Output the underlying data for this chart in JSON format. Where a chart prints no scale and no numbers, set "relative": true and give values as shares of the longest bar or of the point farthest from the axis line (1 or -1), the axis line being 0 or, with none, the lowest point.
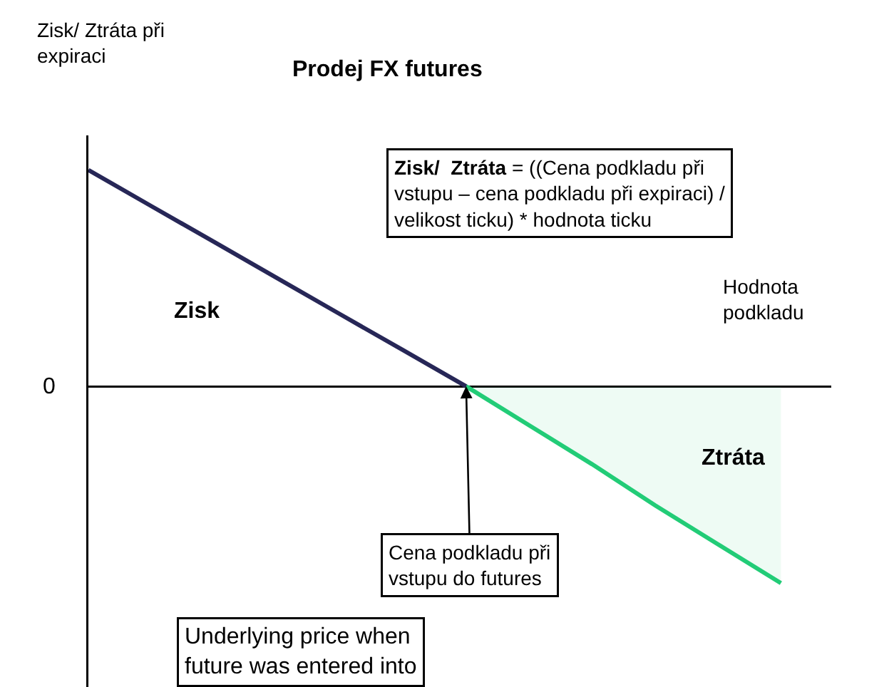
{
  "chart_data": {
    "type": "line",
    "title": "Prodej FX futures",
    "xlabel": "Hodnota podkladu",
    "relative": true,
    "marker": "none",
    "categories": [
      null,
      null,
      null,
      null,
      null,
      null,
      null,
      null,
      null,
      null,
      null,
      null
    ],
    "series": [
      {
        "color": "#272757",
        "values": [
          1,
          0.833,
          0.667,
          0.5,
          0.333,
          0.167,
          0,
          null,
          null,
          null,
          null,
          null
        ]
      },
      {
        "type": "area",
        "color": "#22cc77",
        "values": [
          null,
          null,
          null,
          null,
          null,
          null,
          0,
          -0.18,
          -0.36,
          -0.55,
          -0.73,
          -0.91
        ]
      }
    ],
    "annotations": [
      "Zisk/ Ztráta při expiraci",
      "0",
      "Zisk",
      "Ztráta",
      "Zisk/  Ztráta = ((Cena podkladu při vstupu – cena podkladu při expiraci) / velikost ticku) * hodnota ticku",
      {
        "text": "Cena podkladu při vstupu do futures",
        "y": 0
      },
      "Underlying price when future was entered into"
    ]
  }
}
